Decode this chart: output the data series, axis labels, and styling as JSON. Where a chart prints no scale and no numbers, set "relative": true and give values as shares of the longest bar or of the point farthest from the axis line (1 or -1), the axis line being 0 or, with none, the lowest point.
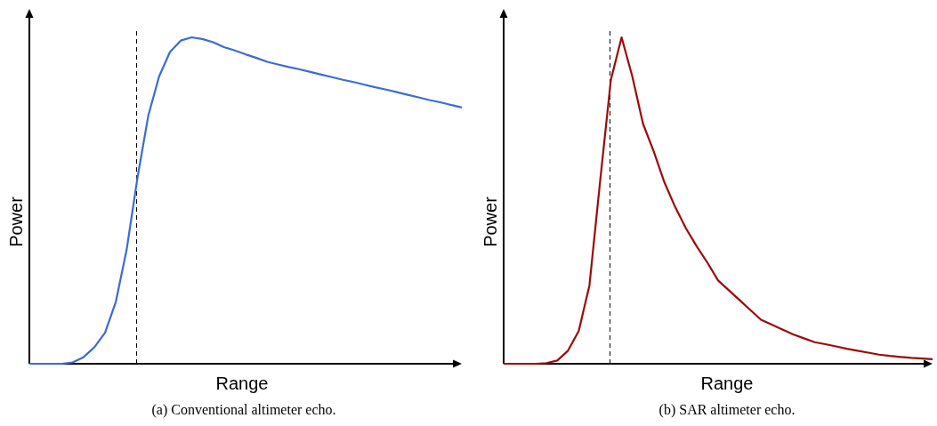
{
  "chart_data": [
    {
      "type": "line",
      "relative": true,
      "xlabel": "Range",
      "ylabel": "Power",
      "annotations": [
        "(a) Conventional altimeter echo."
      ],
      "line_style": "solid",
      "marker": "none",
      "categories": [
        null,
        null,
        null,
        null,
        null,
        null,
        null,
        null,
        null,
        null,
        null,
        null,
        null,
        null,
        null,
        null,
        null,
        null,
        null,
        null,
        null,
        null,
        null,
        null,
        null,
        null,
        null,
        null,
        null,
        null,
        null,
        null,
        null,
        null,
        null,
        null,
        null,
        null,
        null,
        null,
        null
      ],
      "series": [
        {
          "color": "#3a6bd6",
          "values": [
            0,
            0,
            0,
            0,
            0.004,
            0.02,
            0.05,
            0.095,
            0.19,
            0.35,
            0.57,
            0.76,
            0.88,
            0.955,
            0.99,
            1.0,
            0.995,
            0.985,
            0.97,
            0.96,
            0.948,
            0.937,
            0.925,
            0.917,
            0.909,
            0.902,
            0.894,
            0.886,
            0.878,
            0.87,
            0.863,
            0.855,
            0.847,
            0.84,
            0.832,
            0.824,
            0.816,
            0.808,
            0.801,
            0.793,
            0.785
          ]
        }
      ]
    },
    {
      "type": "line",
      "relative": true,
      "xlabel": "Range",
      "ylabel": "Power",
      "annotations": [
        "(b) SAR altimeter echo."
      ],
      "line_style": "solid",
      "marker": "none",
      "categories": [
        null,
        null,
        null,
        null,
        null,
        null,
        null,
        null,
        null,
        null,
        null,
        null,
        null,
        null,
        null,
        null,
        null,
        null,
        null,
        null,
        null,
        null,
        null,
        null,
        null,
        null,
        null,
        null,
        null,
        null,
        null,
        null,
        null,
        null,
        null,
        null,
        null,
        null,
        null,
        null,
        null
      ],
      "series": [
        {
          "color": "#9b0a0a",
          "values": [
            0,
            0,
            0,
            0,
            0.002,
            0.01,
            0.04,
            0.1,
            0.24,
            0.56,
            0.87,
            1.0,
            0.88,
            0.735,
            0.65,
            0.555,
            0.48,
            0.415,
            0.36,
            0.31,
            0.255,
            0.225,
            0.195,
            0.165,
            0.135,
            0.12,
            0.105,
            0.09,
            0.078,
            0.066,
            0.06,
            0.053,
            0.046,
            0.04,
            0.034,
            0.028,
            0.024,
            0.021,
            0.018,
            0.016,
            0.014
          ]
        }
      ]
    }
  ]
}
